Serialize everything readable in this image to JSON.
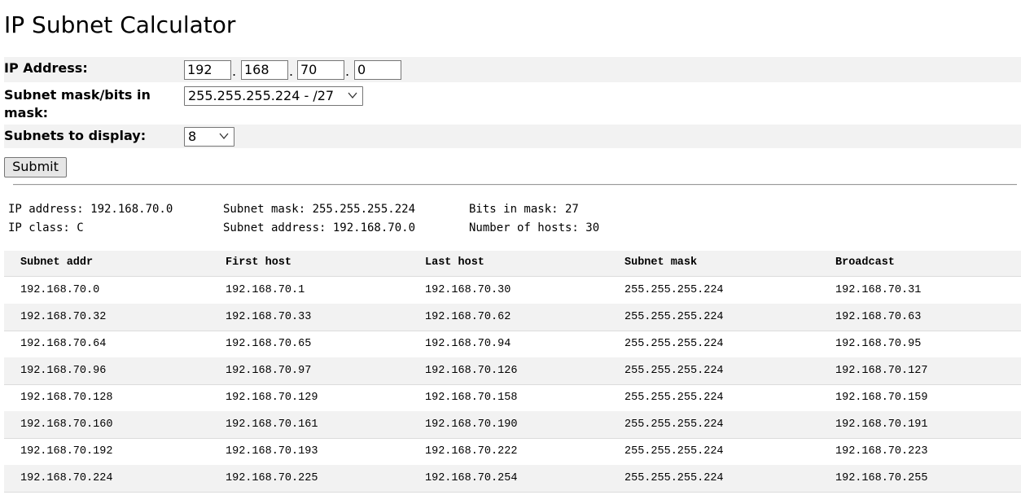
{
  "page": {
    "title": "IP Subnet Calculator"
  },
  "form": {
    "ip_label": "IP Address:",
    "ip_octets": [
      "192",
      "168",
      "70",
      "0"
    ],
    "ip_separator": ".",
    "mask_label": "Subnet mask/bits in mask:",
    "mask_selected": "255.255.255.224 - /27",
    "subnets_label": "Subnets to display:",
    "subnets_selected": "8",
    "submit_label": "Submit"
  },
  "summary": {
    "ip_address": "IP address: 192.168.70.0",
    "subnet_mask": "Subnet mask: 255.255.255.224",
    "bits_in_mask": "Bits in mask: 27",
    "ip_class": "IP class: C",
    "subnet_address": "Subnet address: 192.168.70.0",
    "number_of_hosts": "Number of hosts: 30"
  },
  "table": {
    "headers": [
      "Subnet addr",
      "First host",
      "Last host",
      "Subnet mask",
      "Broadcast"
    ],
    "rows": [
      [
        "192.168.70.0",
        "192.168.70.1",
        "192.168.70.30",
        "255.255.255.224",
        "192.168.70.31"
      ],
      [
        "192.168.70.32",
        "192.168.70.33",
        "192.168.70.62",
        "255.255.255.224",
        "192.168.70.63"
      ],
      [
        "192.168.70.64",
        "192.168.70.65",
        "192.168.70.94",
        "255.255.255.224",
        "192.168.70.95"
      ],
      [
        "192.168.70.96",
        "192.168.70.97",
        "192.168.70.126",
        "255.255.255.224",
        "192.168.70.127"
      ],
      [
        "192.168.70.128",
        "192.168.70.129",
        "192.168.70.158",
        "255.255.255.224",
        "192.168.70.159"
      ],
      [
        "192.168.70.160",
        "192.168.70.161",
        "192.168.70.190",
        "255.255.255.224",
        "192.168.70.191"
      ],
      [
        "192.168.70.192",
        "192.168.70.193",
        "192.168.70.222",
        "255.255.255.224",
        "192.168.70.223"
      ],
      [
        "192.168.70.224",
        "192.168.70.225",
        "192.168.70.254",
        "255.255.255.224",
        "192.168.70.255"
      ]
    ]
  },
  "icons": {
    "dropdown": "chevron-down-icon"
  }
}
